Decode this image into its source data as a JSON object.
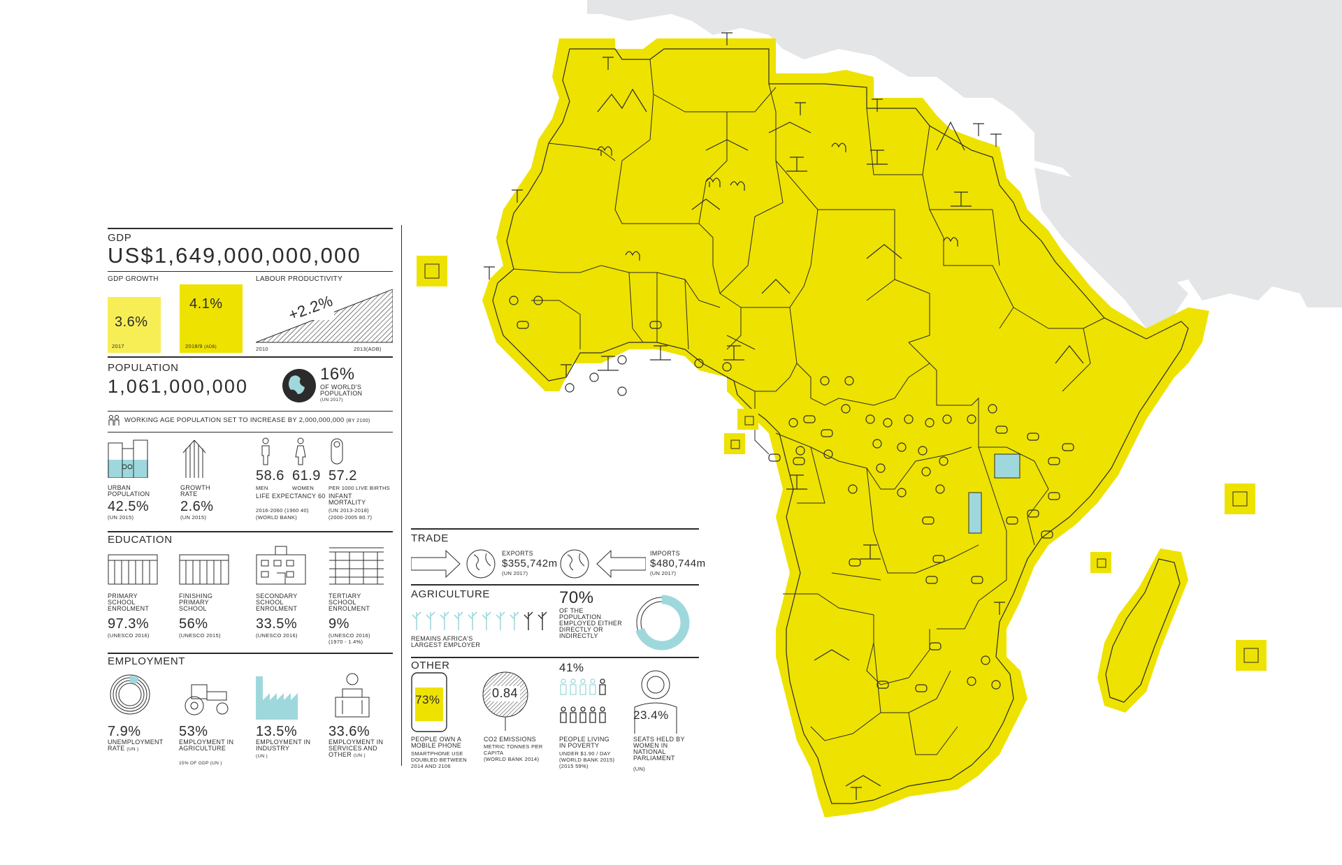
{
  "gdp": {
    "title": "GDP",
    "value": "US$1,649,000,000,000",
    "growth_title": "GDP GROWTH",
    "growth_2017_value": "3.6%",
    "growth_2017_label": "2017",
    "growth_2018_value": "4.1%",
    "growth_2018_label": "2018/9",
    "growth_2018_source": "(ADB)",
    "productivity_title": "LABOUR PRODUCTIVITY",
    "productivity_value": "+2.2%",
    "productivity_from": "2010",
    "productivity_to": "2013(ADB)"
  },
  "population": {
    "title": "POPULATION",
    "value": "1,061,000,000",
    "world_share": "16%",
    "world_share_label_1": "OF WORLD'S",
    "world_share_label_2": "POPULATION",
    "world_share_source": "(UN 2017)",
    "working_age": "WORKING AGE POPULATION SET TO INCREASE BY 2,000,000,000",
    "working_age_source": "(BY 2100)",
    "urban_label": "URBAN POPULATION",
    "urban_value": "42.5%",
    "urban_source": "(UN 2015)",
    "growth_label": "GROWTH RATE",
    "growth_value": "2.6%",
    "growth_source": "(UN 2015)",
    "men_value": "58.6",
    "men_label": "MEN",
    "women_value": "61.9",
    "women_label": "WOMEN",
    "life_label": "LIFE EXPECTANCY 60",
    "life_note": "2016-2060 (1960 40)",
    "life_source": "(WORLD BANK)",
    "infant_value": "57.2",
    "infant_unit": "PER 1000 LIVE BIRTHS",
    "infant_label": "INFANT MORTALITY",
    "infant_note": "(UN 2013-2018)",
    "infant_note2": "(2000-2005 80.7)"
  },
  "education": {
    "title": "EDUCATION",
    "items": [
      {
        "label": "PRIMARY SCHOOL ENROLMENT",
        "value": "97.3%",
        "source": "(UNESCO 2016)",
        "note": ""
      },
      {
        "label": "FINISHING PRIMARY SCHOOL",
        "value": "56%",
        "source": "(UNESCO 2015)",
        "note": ""
      },
      {
        "label": "SECONDARY SCHOOL ENROLMENT",
        "value": "33.5%",
        "source": "(UNESCO 2016)",
        "note": ""
      },
      {
        "label": "TERTIARY SCHOOL ENROLMENT",
        "value": "9%",
        "source": "(UNESCO 2016)",
        "note": "(1970 - 1.4%)"
      }
    ]
  },
  "employment": {
    "title": "EMPLOYMENT",
    "items": [
      {
        "value": "7.9%",
        "label": "UNEMPLOYMENT RATE",
        "source": "(UN )"
      },
      {
        "value": "53%",
        "label": "EMPLOYMENT IN AGRICULTURE",
        "source": "15% OF GDP (UN )"
      },
      {
        "value": "13.5%",
        "label": "EMPLOYMENT IN INDUSTRY",
        "source": "(UN )"
      },
      {
        "value": "33.6%",
        "label": "EMPLOYMENT IN SERVICES AND OTHER",
        "source": "(UN )"
      }
    ],
    "unemployment_fraction": 0.079
  },
  "trade": {
    "title": "TRADE",
    "exports_label": "EXPORTS",
    "exports_value": "$355,742m",
    "exports_source": "(UN 2017)",
    "imports_label": "IMPORTS",
    "imports_value": "$480,744m",
    "imports_source": "(UN 2017)"
  },
  "agriculture": {
    "title": "AGRICULTURE",
    "employer_text": "REMAINS AFRICA'S LARGEST EMPLOYER",
    "employed_value": "70%",
    "employed_text": "OF THE POPULATION EMPLOYED EITHER DIRECTLY OR INDIRECTLY",
    "employed_fraction": 0.7
  },
  "other": {
    "title": "OTHER",
    "mobile_value": "73%",
    "mobile_label": "PEOPLE OWN A MOBILE PHONE",
    "mobile_note": "SMARTPHONE USE DOUBLED BETWEEN 2014 AND 2106",
    "co2_value": "0.84",
    "co2_label": "CO2 EMISSIONS",
    "co2_note": "METRIC TONNES PER CAPITA",
    "co2_source": "(WORLD BANK 2014)",
    "poverty_value": "41%",
    "poverty_label": "PEOPLE LIVING IN POVERTY",
    "poverty_note": "UNDER $1.90 / DAY",
    "poverty_source": "(WORLD BANK 2015)",
    "poverty_note2": "(2015 59%)",
    "women_value": "23.4%",
    "women_label": "SEATS HELD BY WOMEN IN NATIONAL PARLIAMENT",
    "women_source": "(UN)"
  },
  "colors": {
    "yellow": "#eee200",
    "light_yellow": "#f7ee55",
    "teal": "#9fd8dc",
    "grey_land": "#e4e5e7",
    "ink": "#2b2b2b"
  }
}
